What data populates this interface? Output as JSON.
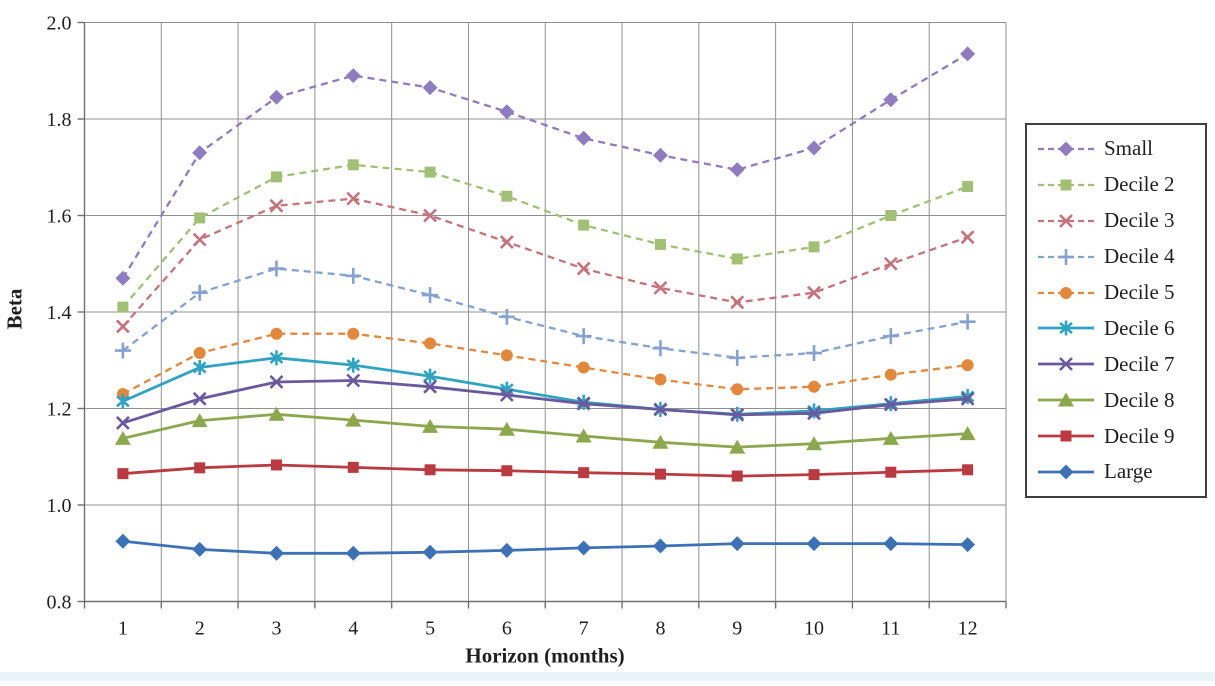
{
  "chart_data": {
    "type": "line",
    "title": "",
    "xlabel": "Horizon (months)",
    "ylabel": "Beta",
    "x": [
      1,
      2,
      3,
      4,
      5,
      6,
      7,
      8,
      9,
      10,
      11,
      12
    ],
    "xticks": [
      "1",
      "2",
      "3",
      "4",
      "5",
      "6",
      "7",
      "8",
      "9",
      "10",
      "11",
      "12"
    ],
    "yticks": [
      "2.0",
      "1.8",
      "1.6",
      "1.4",
      "1.2",
      "1.0",
      "0.8"
    ],
    "ylim": [
      0.8,
      2.0
    ],
    "grid": true,
    "legend_position": "right",
    "series": [
      {
        "name": "Small",
        "color": "#8f7cbf",
        "line": "dashed",
        "marker": "diamond",
        "values": [
          1.47,
          1.73,
          1.845,
          1.89,
          1.865,
          1.815,
          1.76,
          1.725,
          1.695,
          1.74,
          1.84,
          1.935
        ]
      },
      {
        "name": "Decile 2",
        "color": "#a2c075",
        "line": "dashed",
        "marker": "square",
        "values": [
          1.41,
          1.595,
          1.68,
          1.705,
          1.69,
          1.64,
          1.58,
          1.54,
          1.51,
          1.535,
          1.6,
          1.66
        ]
      },
      {
        "name": "Decile 3",
        "color": "#c4737c",
        "line": "dashed",
        "marker": "x",
        "values": [
          1.37,
          1.55,
          1.62,
          1.635,
          1.6,
          1.545,
          1.49,
          1.45,
          1.42,
          1.44,
          1.5,
          1.555
        ]
      },
      {
        "name": "Decile 4",
        "color": "#84a1d1",
        "line": "dashed",
        "marker": "plus",
        "values": [
          1.32,
          1.44,
          1.49,
          1.475,
          1.435,
          1.39,
          1.35,
          1.325,
          1.305,
          1.315,
          1.35,
          1.38
        ]
      },
      {
        "name": "Decile 5",
        "color": "#e2883c",
        "line": "dashed",
        "marker": "circle",
        "values": [
          1.23,
          1.315,
          1.355,
          1.355,
          1.335,
          1.31,
          1.285,
          1.26,
          1.24,
          1.245,
          1.27,
          1.29
        ]
      },
      {
        "name": "Decile 6",
        "color": "#2fa3c2",
        "line": "solid",
        "marker": "asterisk",
        "values": [
          1.215,
          1.285,
          1.305,
          1.29,
          1.267,
          1.24,
          1.213,
          1.198,
          1.188,
          1.195,
          1.21,
          1.225
        ]
      },
      {
        "name": "Decile 7",
        "color": "#6a5a9d",
        "line": "solid",
        "marker": "x",
        "values": [
          1.17,
          1.22,
          1.255,
          1.258,
          1.245,
          1.228,
          1.21,
          1.198,
          1.187,
          1.19,
          1.208,
          1.22
        ]
      },
      {
        "name": "Decile 8",
        "color": "#8ca74e",
        "line": "solid",
        "marker": "triangle",
        "values": [
          1.138,
          1.175,
          1.188,
          1.176,
          1.163,
          1.157,
          1.143,
          1.13,
          1.12,
          1.127,
          1.138,
          1.148
        ]
      },
      {
        "name": "Decile 9",
        "color": "#b93b41",
        "line": "solid",
        "marker": "square",
        "values": [
          1.065,
          1.077,
          1.083,
          1.078,
          1.073,
          1.071,
          1.067,
          1.064,
          1.06,
          1.063,
          1.068,
          1.073
        ]
      },
      {
        "name": "Large",
        "color": "#3c72b5",
        "line": "solid",
        "marker": "diamond",
        "values": [
          0.925,
          0.908,
          0.9,
          0.9,
          0.902,
          0.906,
          0.911,
          0.915,
          0.92,
          0.92,
          0.92,
          0.918
        ]
      }
    ]
  },
  "colors": {
    "grid": "#909090",
    "axis": "#707070",
    "text": "#1f1f1f",
    "legend_border": "#3f3f3f",
    "bottom_strip": "#e9f3f8"
  }
}
